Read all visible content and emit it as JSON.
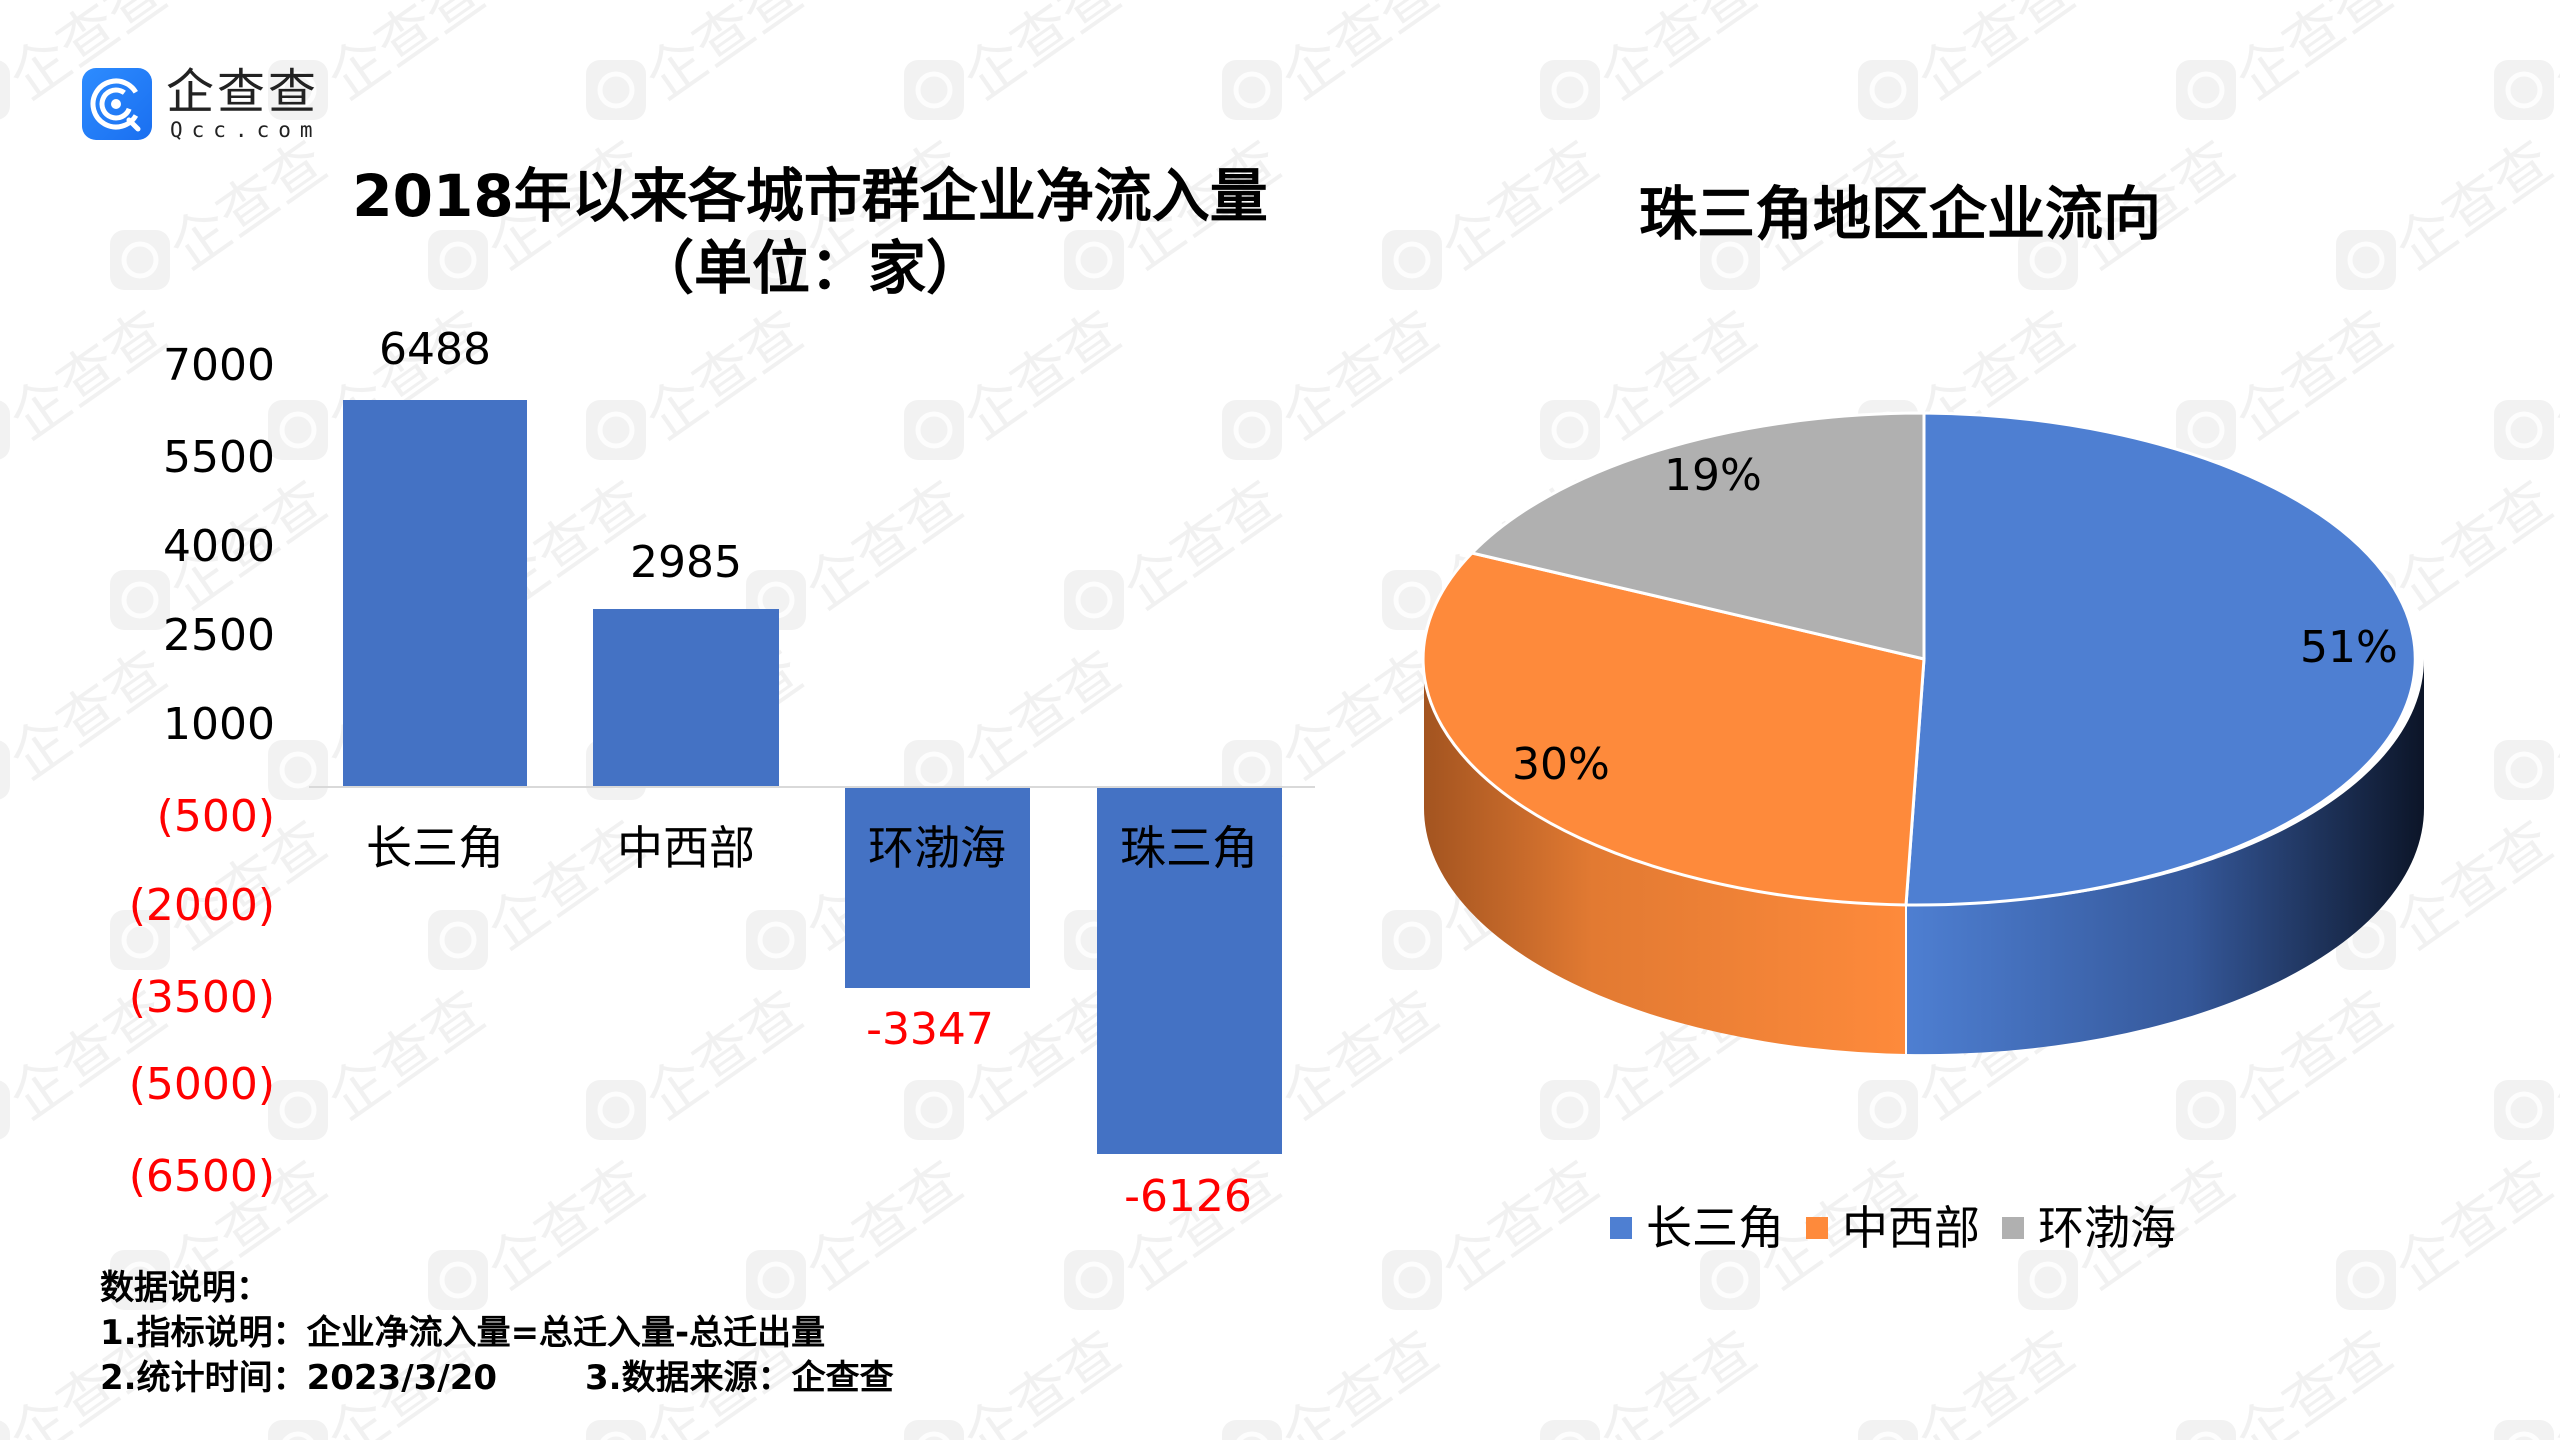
{
  "logo": {
    "name": "企查查",
    "domain": "Qcc.com",
    "brand_color": "#1a7cf5"
  },
  "left_chart": {
    "title_line1": "2018年以来各城市群企业净流入量",
    "title_line2": "（单位：家）"
  },
  "right_chart": {
    "title": "珠三角地区企业流向"
  },
  "footnotes": {
    "heading": "数据说明：",
    "line1": "1.指标说明：企业净流入量=总迁入量-总迁出量",
    "line2_a": "2.统计时间：2023/3/20",
    "line2_b": "3.数据来源：企查查"
  },
  "colors": {
    "bar": "#4472c4",
    "negative_text": "#ff0000",
    "pie_blue": "#4e7fd2",
    "pie_orange": "#fe8a3b",
    "pie_gray": "#b0b0b0"
  },
  "chart_data": [
    {
      "type": "bar",
      "title": "2018年以来各城市群企业净流入量（单位：家）",
      "categories": [
        "长三角",
        "中西部",
        "环渤海",
        "珠三角"
      ],
      "values": [
        6488,
        2985,
        -3347,
        -6126
      ],
      "value_labels": [
        "6488",
        "2985",
        "-3347",
        "-6126"
      ],
      "yticks": [
        "7000",
        "5500",
        "4000",
        "2500",
        "1000",
        "(500)",
        "(2000)",
        "(3500)",
        "(5000)",
        "(6500)"
      ],
      "ytick_values": [
        7000,
        5500,
        4000,
        2500,
        1000,
        -500,
        -2000,
        -3500,
        -5000,
        -6500
      ],
      "xlabel": "",
      "ylabel": "",
      "ylim": [
        -7000,
        7000
      ],
      "grid": false,
      "negative_format": "parentheses, red"
    },
    {
      "type": "pie",
      "title": "珠三角地区企业流向",
      "categories": [
        "长三角",
        "中西部",
        "环渤海"
      ],
      "values": [
        51,
        30,
        19
      ],
      "value_labels": [
        "51%",
        "30%",
        "19%"
      ],
      "style": "3d",
      "legend_position": "bottom"
    }
  ]
}
